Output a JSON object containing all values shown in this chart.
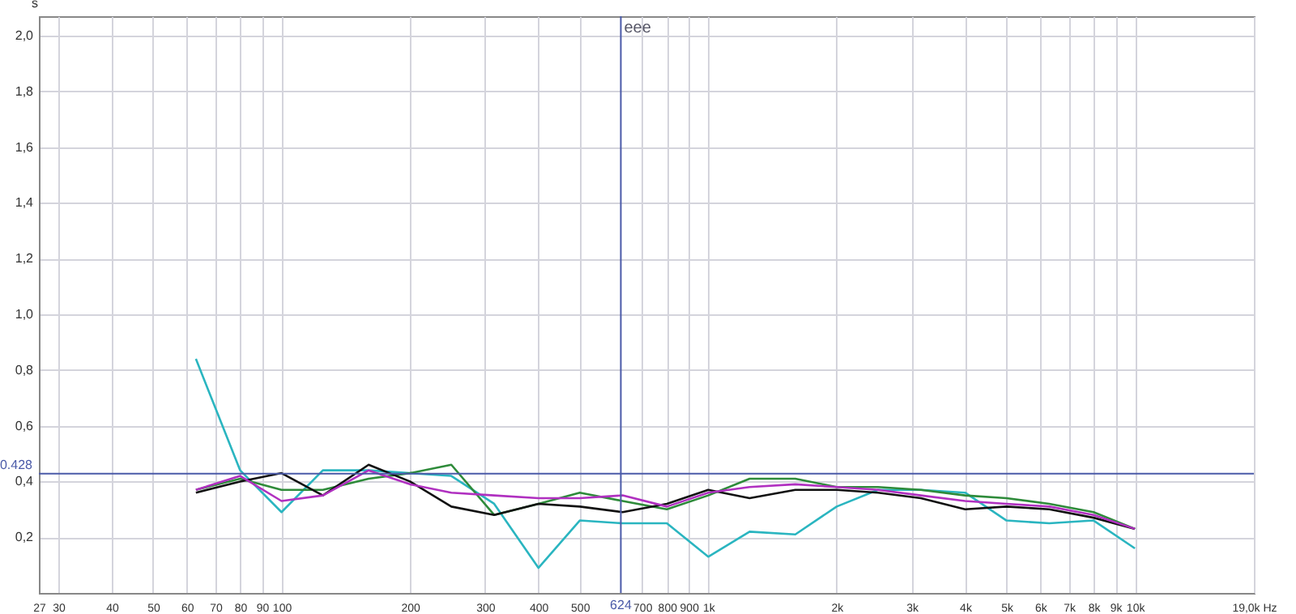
{
  "chart_data": {
    "type": "line",
    "ylabel": "s",
    "x": [
      63,
      80,
      100,
      125,
      160,
      200,
      250,
      315,
      400,
      500,
      630,
      800,
      1000,
      1250,
      1600,
      2000,
      2500,
      3150,
      4000,
      5000,
      6300,
      8000,
      10000
    ],
    "series": [
      {
        "color": "#2ab5c0",
        "values": [
          0.84,
          0.44,
          0.29,
          0.44,
          0.44,
          0.43,
          0.42,
          0.32,
          0.09,
          0.26,
          0.25,
          0.25,
          0.13,
          0.22,
          0.21,
          0.31,
          0.37,
          0.37,
          0.36,
          0.26,
          0.25,
          0.26,
          0.16
        ]
      },
      {
        "color": "#2e8b3a",
        "values": [
          0.37,
          0.41,
          0.37,
          0.37,
          0.41,
          0.43,
          0.46,
          0.28,
          0.32,
          0.36,
          0.33,
          0.3,
          0.35,
          0.41,
          0.41,
          0.38,
          0.38,
          0.37,
          0.35,
          0.34,
          0.32,
          0.29,
          0.23
        ]
      },
      {
        "color": "#111111",
        "values": [
          0.36,
          0.4,
          0.43,
          0.35,
          0.46,
          0.4,
          0.31,
          0.28,
          0.32,
          0.31,
          0.29,
          0.32,
          0.37,
          0.34,
          0.37,
          0.37,
          0.36,
          0.34,
          0.3,
          0.31,
          0.3,
          0.27,
          0.23
        ]
      },
      {
        "color": "#b030c0",
        "values": [
          0.37,
          0.42,
          0.33,
          0.35,
          0.44,
          0.39,
          0.36,
          0.35,
          0.34,
          0.34,
          0.35,
          0.31,
          0.36,
          0.38,
          0.39,
          0.38,
          0.37,
          0.35,
          0.33,
          0.32,
          0.31,
          0.28,
          0.23
        ]
      }
    ],
    "log": "x",
    "xlim": [
      27,
      19000
    ],
    "xticks": [
      27,
      30,
      40,
      50,
      60,
      70,
      80,
      90,
      100,
      200,
      300,
      400,
      500,
      700,
      800,
      900,
      {
        "value": 1000,
        "label": "1k"
      },
      {
        "value": 2000,
        "label": "2k"
      },
      {
        "value": 3000,
        "label": "3k"
      },
      {
        "value": 4000,
        "label": "4k"
      },
      {
        "value": 5000,
        "label": "5k"
      },
      {
        "value": 6000,
        "label": "6k"
      },
      {
        "value": 7000,
        "label": "7k"
      },
      {
        "value": 8000,
        "label": "8k"
      },
      {
        "value": 9000,
        "label": "9k"
      },
      {
        "value": 10000,
        "label": "10k"
      },
      {
        "value": 19000,
        "label": "19,0k Hz"
      }
    ],
    "ylim": [
      0,
      2.07
    ],
    "yticks": [
      {
        "value": 0.2,
        "label": "0,2"
      },
      {
        "value": 0.4,
        "label": "0,4"
      },
      {
        "value": 0.6,
        "label": "0,6"
      },
      {
        "value": 0.8,
        "label": "0,8"
      },
      {
        "value": 1.0,
        "label": "1,0"
      },
      {
        "value": 1.2,
        "label": "1,2"
      },
      {
        "value": 1.4,
        "label": "1,4"
      },
      {
        "value": 1.6,
        "label": "1,6"
      },
      {
        "value": 1.8,
        "label": "1,8"
      },
      {
        "value": 2.0,
        "label": "2,0"
      }
    ],
    "grid": true,
    "ref_lines": [
      {
        "axis": "x",
        "value": 624,
        "label": "624",
        "color": "#4a5aa8"
      },
      {
        "axis": "y",
        "value": 0.428,
        "label": "0.428",
        "color": "#4a5aa8"
      }
    ],
    "annotations": [
      {
        "text": "eee",
        "x": 624,
        "y": 2.0
      }
    ]
  }
}
